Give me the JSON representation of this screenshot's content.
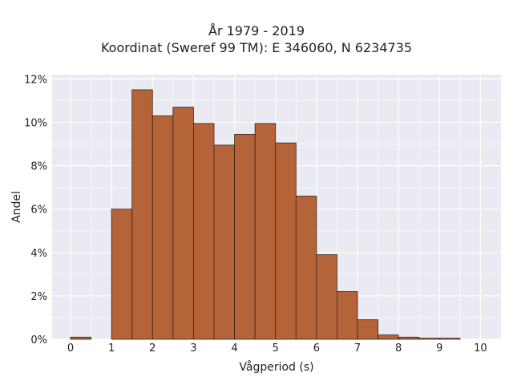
{
  "chart_data": {
    "type": "bar",
    "title": "År 1979 - 2019",
    "subtitle": "Koordinat (Sweref 99 TM): E 346060, N 6234735",
    "xlabel": "Vågperiod (s)",
    "ylabel": "Andel",
    "bin_width": 0.5,
    "bin_starts": [
      0,
      0.5,
      1,
      1.5,
      2,
      2.5,
      3,
      3.5,
      4,
      4.5,
      5,
      5.5,
      6,
      6.5,
      7,
      7.5,
      8,
      8.5,
      9,
      9.5
    ],
    "values": [
      0.1,
      0,
      6.0,
      11.5,
      10.3,
      10.7,
      9.95,
      8.95,
      9.45,
      9.95,
      9.05,
      6.6,
      3.9,
      2.2,
      0.9,
      0.2,
      0.1,
      0.05,
      0.05,
      0
    ],
    "value_unit": "%",
    "xlim": [
      -0.45,
      10.5
    ],
    "ylim": [
      0,
      12.2
    ],
    "xticks": [
      "0",
      "1",
      "2",
      "3",
      "4",
      "5",
      "6",
      "7",
      "8",
      "9",
      "10"
    ],
    "yticks": [
      "0%",
      "2%",
      "4%",
      "6%",
      "8%",
      "10%",
      "12%"
    ],
    "grid": true,
    "legend": "none",
    "colors": {
      "bar_fill": "#b5643a",
      "bar_edge": "#3b2418",
      "plot_bg": "#eaeaf2",
      "grid": "#ffffff"
    }
  }
}
